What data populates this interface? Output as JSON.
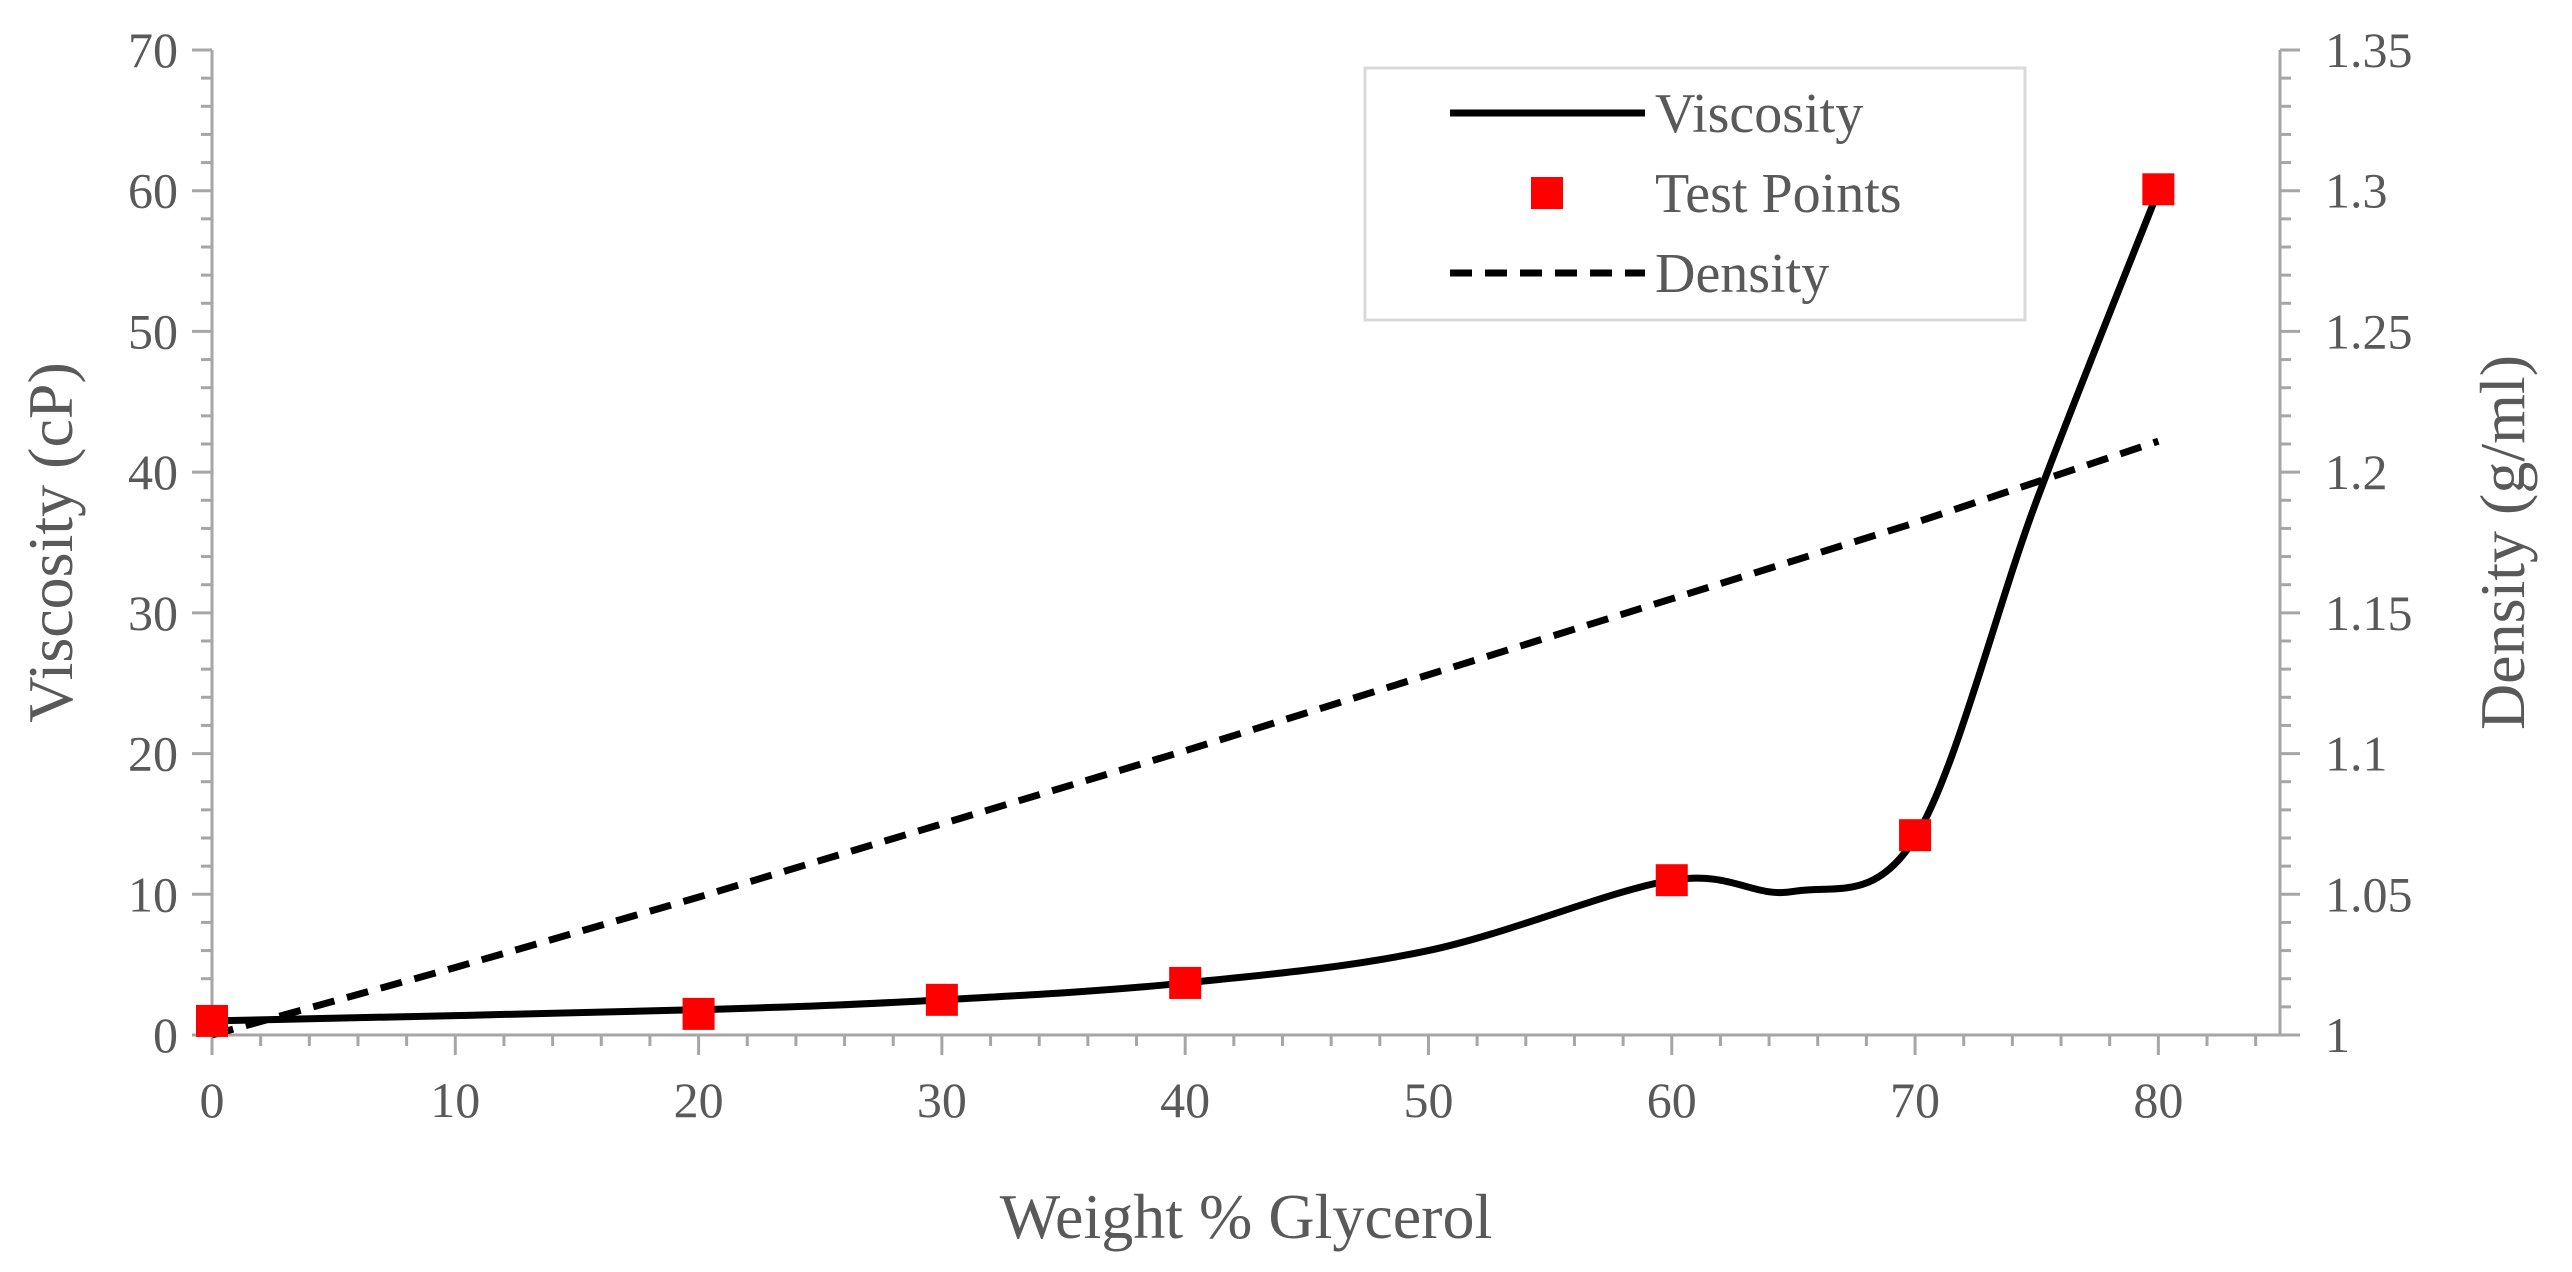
{
  "chart_data": {
    "type": "line",
    "title": "",
    "xlabel": "Weight % Glycerol",
    "ylabel": "Viscosity (cP)",
    "y2label": "Density (g/ml)",
    "xlim": [
      0,
      85
    ],
    "ylim": [
      0,
      70
    ],
    "y2lim": [
      1,
      1.35
    ],
    "xticks": [
      0,
      10,
      20,
      30,
      40,
      50,
      60,
      70,
      80
    ],
    "yticks": [
      0,
      10,
      20,
      30,
      40,
      50,
      60,
      70
    ],
    "y2ticks": [
      1,
      1.05,
      1.1,
      1.15,
      1.2,
      1.25,
      1.3,
      1.35
    ],
    "xtick_labels": [
      "0",
      "10",
      "20",
      "30",
      "40",
      "50",
      "60",
      "70",
      "80"
    ],
    "ytick_labels": [
      "0",
      "10",
      "20",
      "30",
      "40",
      "50",
      "60",
      "70"
    ],
    "y2tick_labels": [
      "1",
      "1.05",
      "1.1",
      "1.15",
      "1.2",
      "1.25",
      "1.3",
      "1.35"
    ],
    "grid": false,
    "legend_position": "top-right",
    "series": [
      {
        "name": "Viscosity",
        "axis": "left",
        "style": "solid",
        "color": "#000000",
        "x": [
          0,
          20,
          30,
          40,
          50,
          60,
          65,
          70,
          75,
          80
        ],
        "y": [
          1.0,
          1.8,
          2.5,
          3.7,
          6.0,
          11.0,
          10.2,
          14.0,
          38.0,
          60.0
        ]
      },
      {
        "name": "Test Points",
        "axis": "left",
        "style": "marker",
        "color": "#ff0000",
        "x": [
          0,
          20,
          30,
          40,
          60,
          70,
          80
        ],
        "y": [
          1.0,
          1.5,
          2.5,
          3.7,
          11.0,
          14.2,
          60.1
        ]
      },
      {
        "name": "Density",
        "axis": "right",
        "style": "dashed",
        "color": "#000000",
        "x": [
          0,
          10,
          20,
          30,
          40,
          50,
          60,
          70,
          80
        ],
        "y": [
          1.0,
          1.024,
          1.049,
          1.075,
          1.101,
          1.128,
          1.155,
          1.182,
          1.211
        ]
      }
    ]
  }
}
